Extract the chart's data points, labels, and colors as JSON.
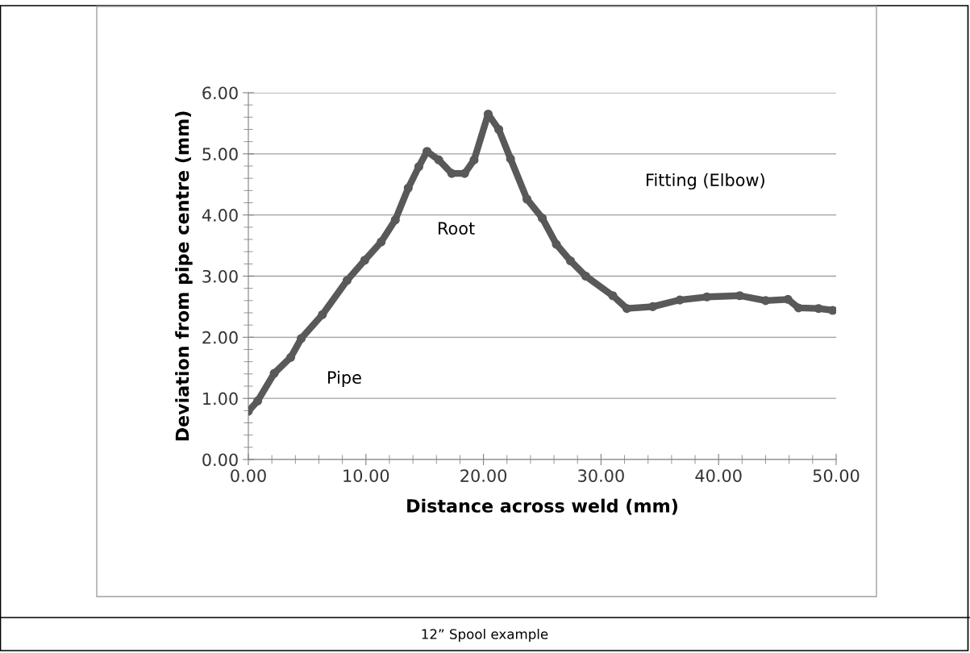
{
  "chart_data": {
    "type": "line",
    "xlabel": "Distance across weld (mm)",
    "ylabel": "Deviation from pipe centre (mm)",
    "x": [
      0,
      0.8,
      2.2,
      3.6,
      4.5,
      6.3,
      8.4,
      9.9,
      11.3,
      12.5,
      13.6,
      14.5,
      15.2,
      16.2,
      17.3,
      18.4,
      19.2,
      20.4,
      21.3,
      22.3,
      23.7,
      25.0,
      26.2,
      27.4,
      28.7,
      31.0,
      32.2,
      34.4,
      36.7,
      39.0,
      41.8,
      44.0,
      45.9,
      46.8,
      48.5,
      49.7
    ],
    "series": [
      {
        "color": "#595959",
        "values": [
          0.79,
          0.96,
          1.41,
          1.67,
          1.98,
          2.37,
          2.93,
          3.26,
          3.56,
          3.92,
          4.44,
          4.79,
          5.04,
          4.9,
          4.68,
          4.68,
          4.9,
          5.65,
          5.4,
          4.92,
          4.26,
          3.95,
          3.52,
          3.25,
          3.0,
          2.68,
          2.47,
          2.5,
          2.61,
          2.66,
          2.68,
          2.6,
          2.62,
          2.48,
          2.47,
          2.44
        ]
      }
    ],
    "xlim": [
      0,
      50
    ],
    "xticks": [
      {
        "value": 0,
        "label": "0.00"
      },
      {
        "value": 10,
        "label": "10.00"
      },
      {
        "value": 20,
        "label": "20.00"
      },
      {
        "value": 30,
        "label": "30.00"
      },
      {
        "value": 40,
        "label": "40.00"
      },
      {
        "value": 50,
        "label": "50.00"
      }
    ],
    "ylim": [
      0,
      6
    ],
    "yticks": [
      {
        "value": 0,
        "label": "0.00"
      },
      {
        "value": 1,
        "label": "1.00"
      },
      {
        "value": 2,
        "label": "2.00"
      },
      {
        "value": 3,
        "label": "3.00"
      },
      {
        "value": 4,
        "label": "4.00"
      },
      {
        "value": 5,
        "label": "5.00"
      },
      {
        "value": 6,
        "label": "6.00"
      }
    ],
    "grid": "y",
    "marker": "circle",
    "line_style": "solid",
    "annotations": [
      "Pipe",
      "Root",
      "Fitting (Elbow)",
      "12” Spool example"
    ]
  }
}
